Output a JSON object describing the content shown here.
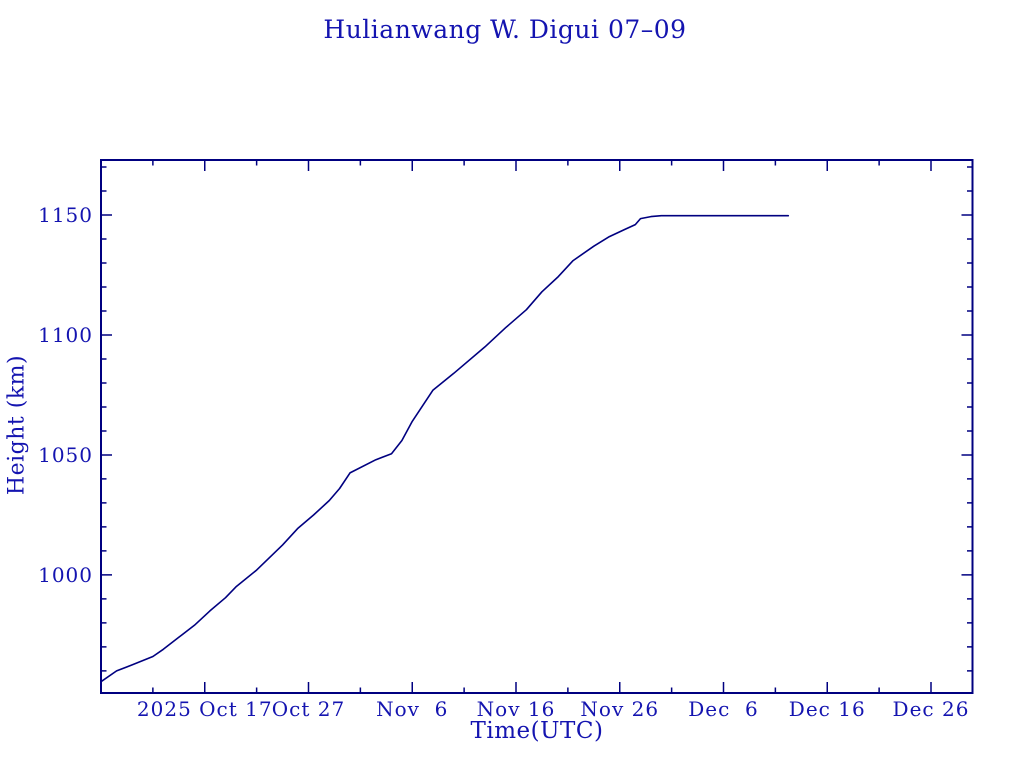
{
  "colors": {
    "text": "#1414b0",
    "axis": "#000080",
    "line": "#000080",
    "background": "#ffffff"
  },
  "chart_data": {
    "type": "line",
    "title": "Hulianwang W. Digui 07–09",
    "xlabel": "Time(UTC)",
    "ylabel": "Height (km)",
    "grid": false,
    "legend": "none",
    "x_axis": {
      "start": "2025-10-07T00:00",
      "end": "2025-12-30T00:00",
      "minor_tick_interval_days": 5,
      "major_ticks": [
        {
          "date": "2025-10-17T00:00",
          "label": "2025 Oct 17"
        },
        {
          "date": "2025-10-27T00:00",
          "label": "Oct 27"
        },
        {
          "date": "2025-11-06T00:00",
          "label": "Nov  6"
        },
        {
          "date": "2025-11-16T00:00",
          "label": "Nov 16"
        },
        {
          "date": "2025-11-26T00:00",
          "label": "Nov 26"
        },
        {
          "date": "2025-12-06T00:00",
          "label": "Dec  6"
        },
        {
          "date": "2025-12-16T00:00",
          "label": "Dec 16"
        },
        {
          "date": "2025-12-26T00:00",
          "label": "Dec 26"
        }
      ]
    },
    "y_axis": {
      "min": 950.8,
      "max": 1172.9,
      "minor_tick_interval_km": 10,
      "major_ticks": [
        {
          "value": 1000,
          "label": "1000"
        },
        {
          "value": 1050,
          "label": "1050"
        },
        {
          "value": 1100,
          "label": "1100"
        },
        {
          "value": 1150,
          "label": "1150"
        }
      ]
    },
    "series": [
      {
        "name": "height",
        "points": [
          [
            "2025-10-07T00:00",
            955.5
          ],
          [
            "2025-10-08T12:00",
            960.0
          ],
          [
            "2025-10-10T00:00",
            962.5
          ],
          [
            "2025-10-12T00:00",
            966.0
          ],
          [
            "2025-10-13T00:00",
            969.0
          ],
          [
            "2025-10-14T12:00",
            974.0
          ],
          [
            "2025-10-16T00:00",
            979.0
          ],
          [
            "2025-10-17T12:00",
            985.0
          ],
          [
            "2025-10-19T00:00",
            990.5
          ],
          [
            "2025-10-20T00:00",
            995.0
          ],
          [
            "2025-10-22T00:00",
            1002.0
          ],
          [
            "2025-10-24T12:00",
            1012.5
          ],
          [
            "2025-10-26T00:00",
            1019.5
          ],
          [
            "2025-10-27T12:00",
            1025.0
          ],
          [
            "2025-10-29T00:00",
            1031.0
          ],
          [
            "2025-10-30T00:00",
            1036.0
          ],
          [
            "2025-10-31T00:00",
            1042.5
          ],
          [
            "2025-11-02T12:00",
            1048.0
          ],
          [
            "2025-11-04T00:00",
            1050.5
          ],
          [
            "2025-11-05T00:00",
            1056.0
          ],
          [
            "2025-11-06T00:00",
            1064.0
          ],
          [
            "2025-11-08T00:00",
            1077.0
          ],
          [
            "2025-11-10T00:00",
            1084.0
          ],
          [
            "2025-11-13T00:00",
            1095.0
          ],
          [
            "2025-11-15T00:00",
            1103.0
          ],
          [
            "2025-11-17T00:00",
            1110.5
          ],
          [
            "2025-11-18T12:00",
            1118.0
          ],
          [
            "2025-11-20T00:00",
            1124.0
          ],
          [
            "2025-11-21T12:00",
            1131.0
          ],
          [
            "2025-11-23T12:00",
            1137.0
          ],
          [
            "2025-11-25T00:00",
            1141.0
          ],
          [
            "2025-11-26T12:00",
            1144.0
          ],
          [
            "2025-11-27T12:00",
            1146.0
          ],
          [
            "2025-11-28T00:00",
            1148.5
          ],
          [
            "2025-11-29T00:00",
            1149.3
          ],
          [
            "2025-11-30T00:00",
            1149.7
          ],
          [
            "2025-12-12T06:00",
            1149.7
          ]
        ]
      }
    ]
  }
}
